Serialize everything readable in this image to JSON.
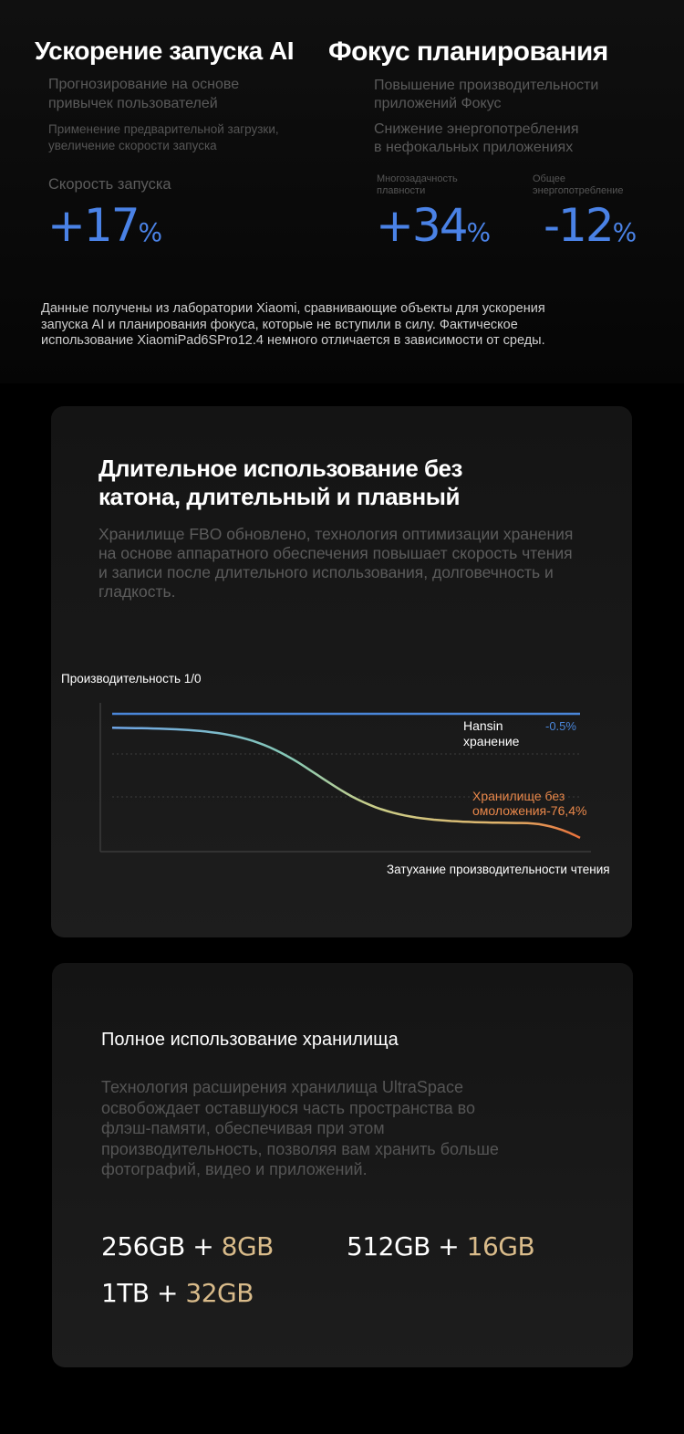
{
  "top": {
    "left": {
      "title": "Ускорение запуска AI",
      "line1a": "Прогнозирование на основе",
      "line1b": "привычек пользователей",
      "line2a": "Применение предварительной загрузки,",
      "line2b": "увеличение скорости запуска",
      "metric_label": "Скорость запуска",
      "metric_value": "+17",
      "metric_unit": "%"
    },
    "right": {
      "title": "Фокус планирования",
      "line1a": "Повышение производительности",
      "line1b": "приложений Фокус",
      "line2a": "Снижение энергопотребления",
      "line2b": "в нефокальных приложениях",
      "metric1_label_a": "Многозадачность",
      "metric1_label_b": "плавности",
      "metric1_value": "+34",
      "metric1_unit": "%",
      "metric2_label_a": "Общее",
      "metric2_label_b": "энергопотребление",
      "metric2_value": "-12",
      "metric2_unit": "%"
    },
    "note_a": "Данные получены из лаборатории Xiaomi, сравнивающие объекты для ускорения",
    "note_b": "запуска AI и планирования фокуса, которые не вступили в силу. Фактическое",
    "note_c": "использование XiaomiPad6SPro12.4 немного отличается в зависимости от среды."
  },
  "card1": {
    "title_a": "Длительное использование без",
    "title_b": "катона, длительный и плавный",
    "desc_a": "Хранилище FBO обновлено, технология оптимизации хранения",
    "desc_b": "на основе аппаратного обеспечения повышает скорость чтения",
    "desc_c": "и записи после длительного использования, долговечность и",
    "desc_d": "гладкость."
  },
  "chart_data": {
    "type": "line",
    "ylabel": "Производительность 1/0",
    "xlabel": "Затухание производительности чтения",
    "series": [
      {
        "name_a": "Hansin",
        "name_b": "хранение",
        "delta": "-0.5%",
        "color": "#4a86d9",
        "values": [
          100,
          99.5
        ]
      },
      {
        "name_a": "Хранилище без",
        "name_b": "омоложения-76,4%",
        "color": "#e8874a",
        "values": [
          100,
          23.6
        ]
      }
    ]
  },
  "card2": {
    "title": "Полное использование хранилища",
    "desc_a": "Технология расширения хранилища UltraSpace",
    "desc_b": "освобождает оставшуюся часть пространства во",
    "desc_c": "флэш-памяти, обеспечивая при этом",
    "desc_d": "производительность, позволяя вам хранить больше",
    "desc_e": "фотографий, видео и приложений.",
    "plus": "+",
    "cap1_base": "256GB",
    "cap1_extra": "8GB",
    "cap2_base": "512GB",
    "cap2_extra": "16GB",
    "cap3_base": "1TB",
    "cap3_extra": "32GB"
  }
}
